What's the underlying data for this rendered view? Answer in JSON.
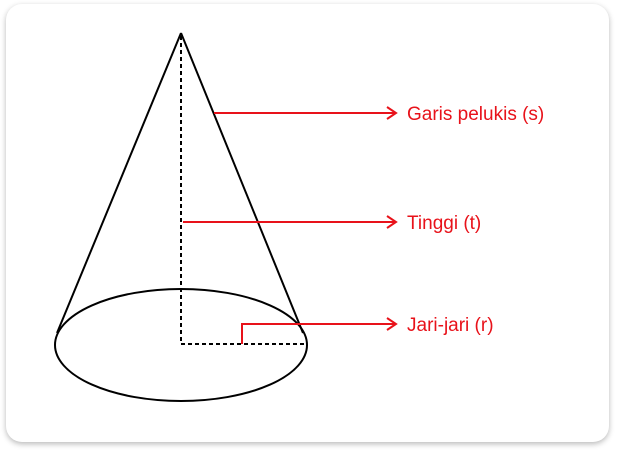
{
  "labels": {
    "slant": "Garis pelukis (s)",
    "height": "Tinggi (t)",
    "radius": "Jari-jari (r)"
  },
  "colors": {
    "outline": "#000000",
    "annotation": "#e8121a"
  }
}
